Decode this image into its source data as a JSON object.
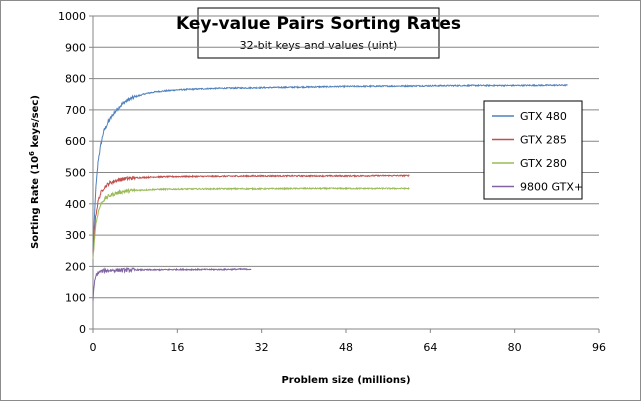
{
  "chart_data": {
    "type": "line",
    "title": "Key-value Pairs Sorting Rates",
    "subtitle": "32-bit keys and values (uint)",
    "xlabel": "Problem size (millions)",
    "ylabel_prefix": "Sorting Rate (10",
    "ylabel_sup": "6",
    "ylabel_suffix": " keys/sec)",
    "xlim": [
      0,
      96
    ],
    "ylim": [
      0,
      1000
    ],
    "x_ticks": [
      "0",
      "16",
      "32",
      "48",
      "64",
      "80",
      "96"
    ],
    "y_ticks": [
      "0",
      "100",
      "200",
      "300",
      "400",
      "500",
      "600",
      "700",
      "800",
      "900",
      "1000"
    ],
    "grid": "horizontal",
    "legend_position": "right",
    "series": [
      {
        "name": "GTX 480",
        "color": "#4f81bd",
        "points": [
          [
            0,
            250
          ],
          [
            0.5,
            440
          ],
          [
            1,
            540
          ],
          [
            1.5,
            590
          ],
          [
            2,
            630
          ],
          [
            3,
            665
          ],
          [
            4,
            690
          ],
          [
            5,
            710
          ],
          [
            6,
            725
          ],
          [
            7,
            735
          ],
          [
            8,
            742
          ],
          [
            10,
            752
          ],
          [
            12,
            758
          ],
          [
            16,
            764
          ],
          [
            20,
            767
          ],
          [
            24,
            769
          ],
          [
            32,
            771
          ],
          [
            40,
            773
          ],
          [
            48,
            775
          ],
          [
            56,
            776
          ],
          [
            64,
            777
          ],
          [
            72,
            778
          ],
          [
            80,
            778
          ],
          [
            88,
            779
          ],
          [
            90,
            779
          ]
        ]
      },
      {
        "name": "GTX 285",
        "color": "#c0504d",
        "points": [
          [
            0,
            240
          ],
          [
            0.5,
            360
          ],
          [
            1,
            410
          ],
          [
            1.5,
            435
          ],
          [
            2,
            450
          ],
          [
            3,
            465
          ],
          [
            4,
            472
          ],
          [
            5,
            477
          ],
          [
            6,
            480
          ],
          [
            8,
            483
          ],
          [
            12,
            486
          ],
          [
            16,
            487
          ],
          [
            24,
            488
          ],
          [
            32,
            489
          ],
          [
            40,
            489
          ],
          [
            48,
            489
          ],
          [
            56,
            490
          ],
          [
            60,
            490
          ]
        ]
      },
      {
        "name": "GTX 280",
        "color": "#9bbb59",
        "points": [
          [
            0,
            225
          ],
          [
            0.5,
            330
          ],
          [
            1,
            375
          ],
          [
            1.5,
            398
          ],
          [
            2,
            412
          ],
          [
            3,
            425
          ],
          [
            4,
            432
          ],
          [
            5,
            437
          ],
          [
            6,
            440
          ],
          [
            8,
            443
          ],
          [
            12,
            446
          ],
          [
            16,
            447
          ],
          [
            24,
            448
          ],
          [
            32,
            448
          ],
          [
            40,
            449
          ],
          [
            48,
            449
          ],
          [
            56,
            449
          ],
          [
            60,
            449
          ]
        ]
      },
      {
        "name": "9800 GTX+",
        "color": "#8064a2",
        "points": [
          [
            0,
            95
          ],
          [
            0.3,
            150
          ],
          [
            0.6,
            172
          ],
          [
            1,
            180
          ],
          [
            1.5,
            184
          ],
          [
            2,
            186
          ],
          [
            3,
            187
          ],
          [
            4,
            188
          ],
          [
            6,
            188
          ],
          [
            8,
            189
          ],
          [
            12,
            189
          ],
          [
            16,
            190
          ],
          [
            20,
            190
          ],
          [
            24,
            190
          ],
          [
            28,
            191
          ],
          [
            30,
            191
          ]
        ]
      }
    ]
  }
}
